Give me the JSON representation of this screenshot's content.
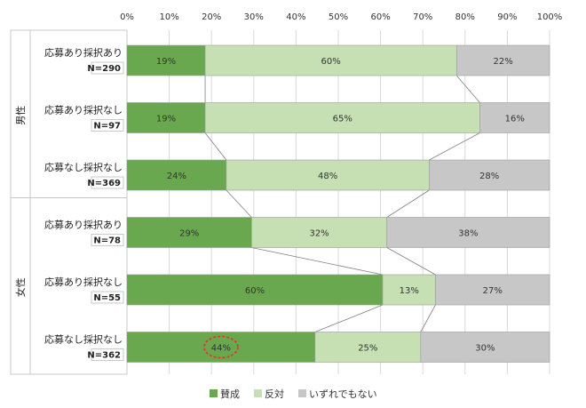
{
  "chart_data": {
    "type": "bar",
    "stacked": true,
    "orientation": "horizontal",
    "xlim": [
      0,
      100
    ],
    "x_ticks": [
      "0%",
      "10%",
      "20%",
      "30%",
      "40%",
      "50%",
      "60%",
      "70%",
      "80%",
      "90%",
      "100%"
    ],
    "grid": true,
    "legend_position": "bottom",
    "groups": [
      {
        "label": "男性",
        "start": 0,
        "end": 3
      },
      {
        "label": "女性",
        "start": 3,
        "end": 6
      }
    ],
    "categories": [
      "応募あり採択あり",
      "応募あり採択なし",
      "応募なし採択なし",
      "応募あり採択あり",
      "応募あり採択なし",
      "応募なし採択なし"
    ],
    "n_labels": [
      "N=290",
      "N=97",
      "N=369",
      "N=78",
      "N=55",
      "N=362"
    ],
    "series": [
      {
        "name": "賛成",
        "color": "#6aa84f",
        "values": [
          18.5,
          18.5,
          23.5,
          29.5,
          60.5,
          44.5
        ],
        "labels": [
          "19%",
          "19%",
          "24%",
          "29%",
          "60%",
          "44%"
        ]
      },
      {
        "name": "反対",
        "color": "#c6e0b4",
        "values": [
          59.5,
          65.0,
          48.0,
          32.0,
          12.5,
          25.0
        ],
        "labels": [
          "60%",
          "65%",
          "48%",
          "32%",
          "13%",
          "25%"
        ]
      },
      {
        "name": "いずれでもない",
        "color": "#c7c7c7",
        "values": [
          22.0,
          16.5,
          28.5,
          38.5,
          27.0,
          30.5
        ],
        "labels": [
          "22%",
          "16%",
          "28%",
          "38%",
          "27%",
          "30%"
        ]
      }
    ],
    "highlight": {
      "row": 5,
      "series": 0,
      "color": "#e03a2e"
    }
  }
}
